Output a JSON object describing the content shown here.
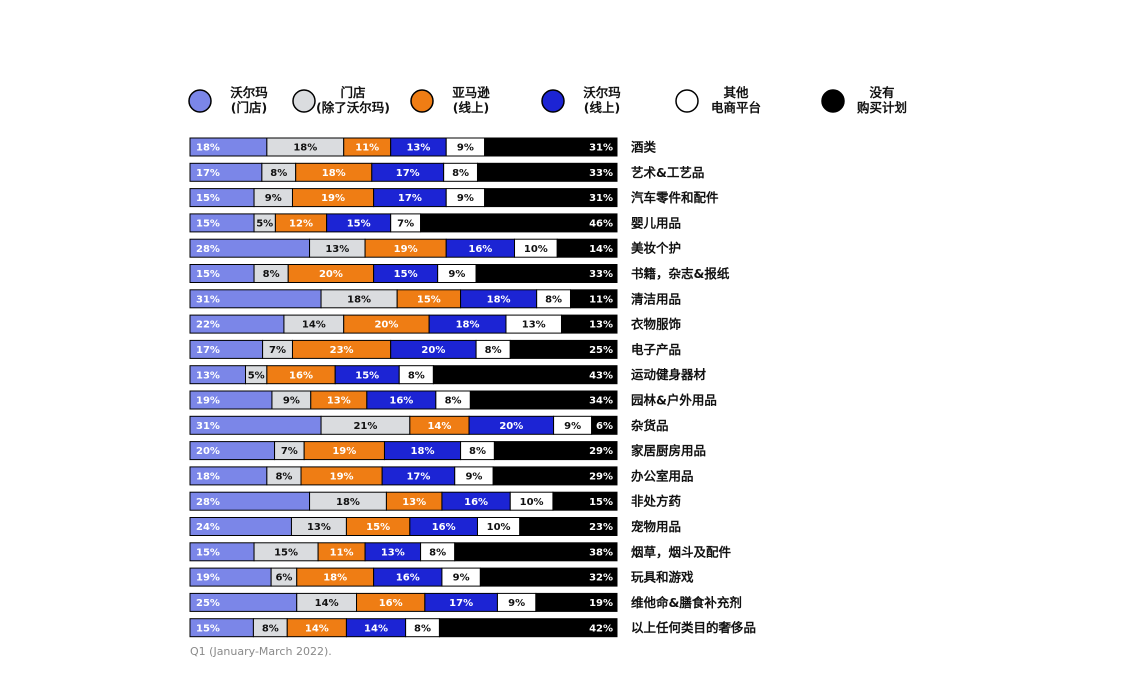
{
  "chart_data": {
    "type": "bar",
    "orientation": "horizontal",
    "stacked": true,
    "normalized_to_percent": true,
    "legend_position": "top",
    "series": [
      {
        "name": "沃尔玛\n(门店)",
        "color": "#7b86e8",
        "label_color": "#ffffff",
        "values": [
          18,
          17,
          15,
          15,
          28,
          15,
          31,
          22,
          17,
          13,
          19,
          31,
          20,
          18,
          28,
          24,
          15,
          19,
          25,
          15
        ]
      },
      {
        "name": "门店\n(除了沃尔玛)",
        "color": "#dadcdf",
        "label_color": "#111111",
        "values": [
          18,
          8,
          9,
          5,
          13,
          8,
          18,
          14,
          7,
          5,
          9,
          21,
          7,
          8,
          18,
          13,
          15,
          6,
          14,
          8
        ]
      },
      {
        "name": "亚马逊\n(线上)",
        "color": "#ef7d14",
        "label_color": "#ffffff",
        "values": [
          11,
          18,
          19,
          12,
          19,
          20,
          15,
          20,
          23,
          16,
          13,
          14,
          19,
          19,
          13,
          15,
          11,
          18,
          16,
          14
        ]
      },
      {
        "name": "沃尔玛\n(线上)",
        "color": "#1c24d4",
        "label_color": "#ffffff",
        "values": [
          13,
          17,
          17,
          15,
          16,
          15,
          18,
          18,
          20,
          15,
          16,
          20,
          18,
          17,
          16,
          16,
          13,
          16,
          17,
          14
        ]
      },
      {
        "name": "其他\n电商平台",
        "color": "#ffffff",
        "label_color": "#111111",
        "values": [
          9,
          8,
          9,
          7,
          10,
          9,
          8,
          13,
          8,
          8,
          8,
          9,
          8,
          9,
          10,
          10,
          8,
          9,
          9,
          8
        ]
      },
      {
        "name": "没有\n购买计划",
        "color": "#000000",
        "label_color": "#ffffff",
        "values": [
          31,
          33,
          31,
          46,
          14,
          33,
          11,
          13,
          25,
          43,
          34,
          6,
          29,
          29,
          15,
          23,
          38,
          32,
          19,
          42
        ]
      }
    ],
    "categories": [
      "酒类",
      "艺术&工艺品",
      "汽车零件和配件",
      "婴儿用品",
      "美妆个护",
      "书籍，杂志&报纸",
      "清洁用品",
      "衣物服饰",
      "电子产品",
      "运动健身器材",
      "园林&户外用品",
      "杂货品",
      "家居厨房用品",
      "办公室用品",
      "非处方药",
      "宠物用品",
      "烟草，烟斗及配件",
      "玩具和游戏",
      "维他命&膳食补充剂",
      "以上任何类目的奢侈品"
    ],
    "value_suffix": "%",
    "footnote": "Q1 (January-March 2022)."
  }
}
